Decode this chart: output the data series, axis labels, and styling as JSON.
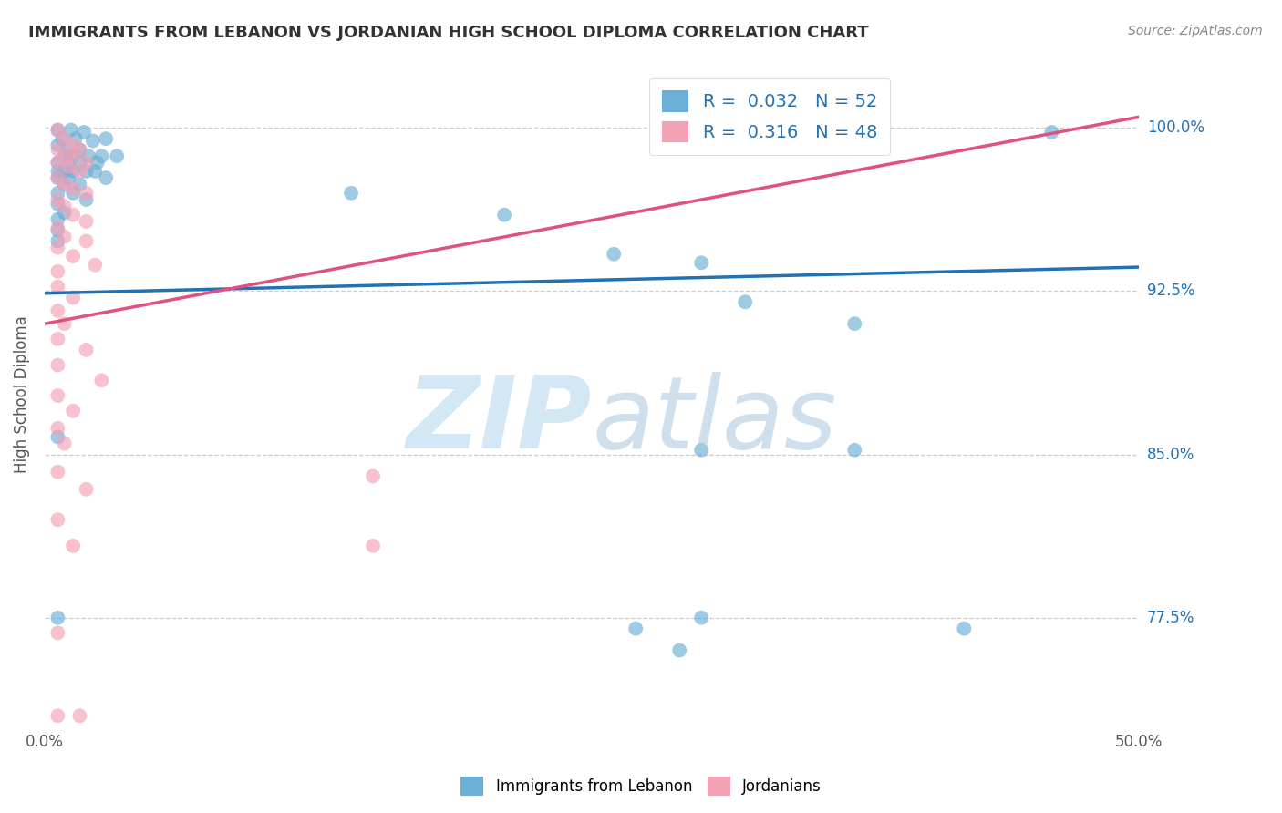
{
  "title": "IMMIGRANTS FROM LEBANON VS JORDANIAN HIGH SCHOOL DIPLOMA CORRELATION CHART",
  "source": "Source: ZipAtlas.com",
  "ylabel": "High School Diploma",
  "yticks": [
    "77.5%",
    "85.0%",
    "92.5%",
    "100.0%"
  ],
  "ytick_values": [
    0.775,
    0.85,
    0.925,
    1.0
  ],
  "xlim": [
    0.0,
    0.5
  ],
  "ylim": [
    0.725,
    1.03
  ],
  "legend_label1": "Immigrants from Lebanon",
  "legend_label2": "Jordanians",
  "R1": 0.032,
  "N1": 52,
  "R2": 0.316,
  "N2": 48,
  "color_blue": "#6baed6",
  "color_pink": "#f4a0b5",
  "color_blue_line": "#2171b5",
  "color_pink_line": "#e05080",
  "color_blue_text": "#2171b5",
  "blue_line": [
    [
      0.0,
      0.924
    ],
    [
      0.5,
      0.936
    ]
  ],
  "pink_line": [
    [
      0.0,
      0.91
    ],
    [
      0.5,
      1.005
    ]
  ],
  "scatter_blue": [
    [
      0.006,
      0.999
    ],
    [
      0.012,
      0.999
    ],
    [
      0.018,
      0.998
    ],
    [
      0.008,
      0.995
    ],
    [
      0.014,
      0.995
    ],
    [
      0.022,
      0.994
    ],
    [
      0.028,
      0.995
    ],
    [
      0.006,
      0.992
    ],
    [
      0.01,
      0.99
    ],
    [
      0.016,
      0.99
    ],
    [
      0.009,
      0.987
    ],
    [
      0.013,
      0.987
    ],
    [
      0.02,
      0.987
    ],
    [
      0.026,
      0.987
    ],
    [
      0.033,
      0.987
    ],
    [
      0.006,
      0.984
    ],
    [
      0.011,
      0.984
    ],
    [
      0.016,
      0.984
    ],
    [
      0.024,
      0.984
    ],
    [
      0.006,
      0.98
    ],
    [
      0.009,
      0.98
    ],
    [
      0.013,
      0.98
    ],
    [
      0.019,
      0.98
    ],
    [
      0.023,
      0.98
    ],
    [
      0.028,
      0.977
    ],
    [
      0.006,
      0.977
    ],
    [
      0.011,
      0.977
    ],
    [
      0.016,
      0.974
    ],
    [
      0.009,
      0.974
    ],
    [
      0.006,
      0.97
    ],
    [
      0.013,
      0.97
    ],
    [
      0.019,
      0.967
    ],
    [
      0.006,
      0.965
    ],
    [
      0.009,
      0.961
    ],
    [
      0.006,
      0.958
    ],
    [
      0.006,
      0.953
    ],
    [
      0.006,
      0.948
    ],
    [
      0.14,
      0.97
    ],
    [
      0.21,
      0.96
    ],
    [
      0.26,
      0.942
    ],
    [
      0.3,
      0.938
    ],
    [
      0.32,
      0.92
    ],
    [
      0.37,
      0.91
    ],
    [
      0.006,
      0.858
    ],
    [
      0.006,
      0.775
    ],
    [
      0.3,
      0.852
    ],
    [
      0.37,
      0.852
    ],
    [
      0.46,
      0.998
    ],
    [
      0.3,
      0.775
    ],
    [
      0.27,
      0.77
    ],
    [
      0.42,
      0.77
    ],
    [
      0.29,
      0.76
    ]
  ],
  "scatter_pink": [
    [
      0.006,
      0.999
    ],
    [
      0.009,
      0.995
    ],
    [
      0.013,
      0.992
    ],
    [
      0.016,
      0.99
    ],
    [
      0.006,
      0.99
    ],
    [
      0.009,
      0.987
    ],
    [
      0.013,
      0.987
    ],
    [
      0.019,
      0.984
    ],
    [
      0.006,
      0.984
    ],
    [
      0.011,
      0.982
    ],
    [
      0.016,
      0.98
    ],
    [
      0.006,
      0.977
    ],
    [
      0.009,
      0.974
    ],
    [
      0.013,
      0.972
    ],
    [
      0.019,
      0.97
    ],
    [
      0.006,
      0.967
    ],
    [
      0.009,
      0.964
    ],
    [
      0.013,
      0.96
    ],
    [
      0.019,
      0.957
    ],
    [
      0.006,
      0.954
    ],
    [
      0.009,
      0.95
    ],
    [
      0.019,
      0.948
    ],
    [
      0.006,
      0.945
    ],
    [
      0.013,
      0.941
    ],
    [
      0.023,
      0.937
    ],
    [
      0.006,
      0.934
    ],
    [
      0.006,
      0.927
    ],
    [
      0.013,
      0.922
    ],
    [
      0.006,
      0.916
    ],
    [
      0.009,
      0.91
    ],
    [
      0.006,
      0.903
    ],
    [
      0.019,
      0.898
    ],
    [
      0.006,
      0.891
    ],
    [
      0.026,
      0.884
    ],
    [
      0.006,
      0.877
    ],
    [
      0.013,
      0.87
    ],
    [
      0.006,
      0.862
    ],
    [
      0.009,
      0.855
    ],
    [
      0.006,
      0.842
    ],
    [
      0.019,
      0.834
    ],
    [
      0.006,
      0.82
    ],
    [
      0.013,
      0.808
    ],
    [
      0.006,
      0.768
    ],
    [
      0.006,
      0.73
    ],
    [
      0.016,
      0.73
    ],
    [
      0.15,
      0.84
    ],
    [
      0.15,
      0.808
    ],
    [
      0.38,
      0.998
    ]
  ]
}
